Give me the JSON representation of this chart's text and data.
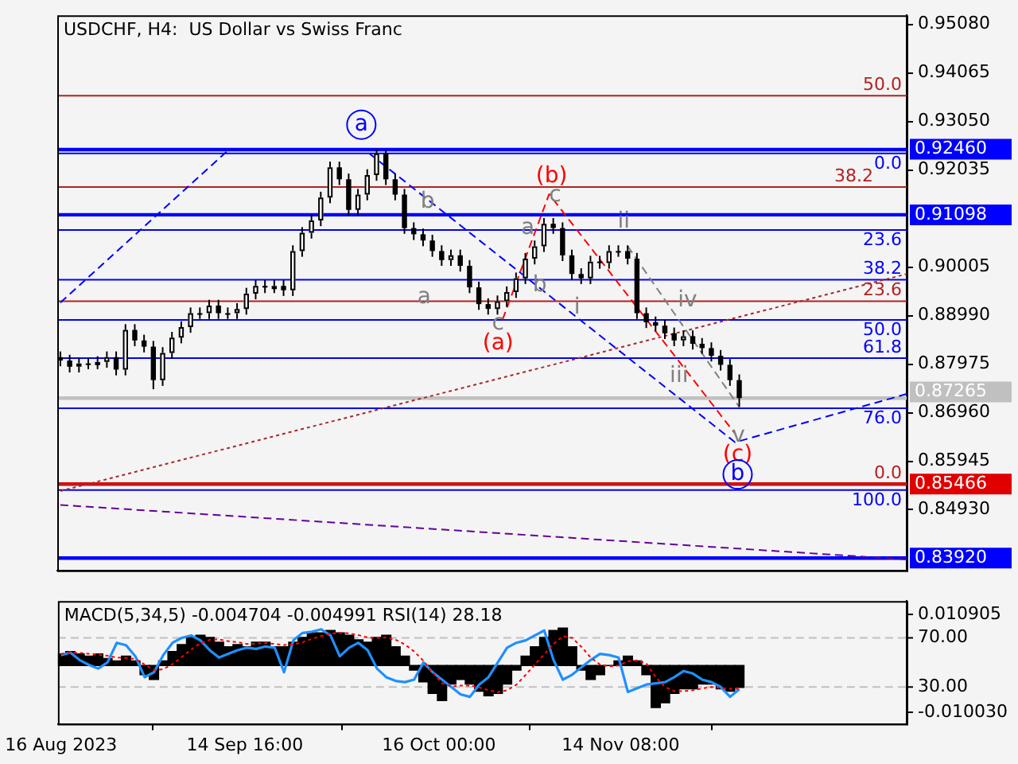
{
  "chart_data": [
    {
      "type": "candlestick",
      "title": "USDCHF, H4:  US Dollar vs Swiss Franc",
      "x": [
        "2023-08-16T00:00",
        "2023-08-17T12:00",
        "2023-08-19T00:00",
        "2023-08-20T12:00",
        "2023-08-22T00:00",
        "2023-08-23T12:00",
        "2023-08-25T00:00",
        "2023-08-26T12:00",
        "2023-08-28T00:00",
        "2023-08-29T12:00",
        "2023-08-31T00:00",
        "2023-09-01T12:00",
        "2023-09-03T00:00",
        "2023-09-04T12:00",
        "2023-09-06T00:00",
        "2023-09-07T12:00",
        "2023-09-09T00:00",
        "2023-09-10T12:00",
        "2023-09-12T00:00",
        "2023-09-13T12:00",
        "2023-09-15T00:00",
        "2023-09-16T12:00",
        "2023-09-18T00:00",
        "2023-09-19T12:00",
        "2023-09-21T00:00",
        "2023-09-22T12:00",
        "2023-09-24T00:00",
        "2023-09-25T12:00",
        "2023-09-27T00:00",
        "2023-09-28T12:00",
        "2023-09-30T00:00",
        "2023-10-01T12:00",
        "2023-10-03T00:00",
        "2023-10-04T12:00",
        "2023-10-06T00:00",
        "2023-10-07T12:00",
        "2023-10-09T00:00",
        "2023-10-10T12:00",
        "2023-10-12T00:00",
        "2023-10-13T12:00",
        "2023-10-15T00:00",
        "2023-10-16T12:00",
        "2023-10-18T00:00",
        "2023-10-19T12:00",
        "2023-10-21T00:00",
        "2023-10-22T12:00",
        "2023-10-24T00:00",
        "2023-10-25T12:00",
        "2023-10-27T00:00",
        "2023-10-28T12:00",
        "2023-10-30T00:00",
        "2023-10-31T12:00",
        "2023-11-02T00:00",
        "2023-11-03T12:00",
        "2023-11-05T00:00",
        "2023-11-06T12:00",
        "2023-11-08T00:00",
        "2023-11-09T12:00",
        "2023-11-11T00:00",
        "2023-11-12T12:00",
        "2023-11-14T00:00",
        "2023-11-15T12:00",
        "2023-11-17T00:00",
        "2023-11-18T12:00",
        "2023-11-20T00:00",
        "2023-11-21T12:00",
        "2023-11-23T00:00",
        "2023-11-24T12:00",
        "2023-11-26T00:00",
        "2023-11-27T12:00",
        "2023-11-29T00:00",
        "2023-11-30T12:00",
        "2023-12-02T00:00",
        "2023-12-03T12:00"
      ],
      "ohlc": [
        [
          0.8812,
          0.8824,
          0.8793,
          0.8805
        ],
        [
          0.8805,
          0.8817,
          0.878,
          0.8792
        ],
        [
          0.8792,
          0.8811,
          0.878,
          0.8799
        ],
        [
          0.8799,
          0.8811,
          0.8787,
          0.8799
        ],
        [
          0.8799,
          0.8814,
          0.8787,
          0.8802
        ],
        [
          0.8802,
          0.8824,
          0.879,
          0.8812
        ],
        [
          0.8812,
          0.8824,
          0.8774,
          0.8786
        ],
        [
          0.8786,
          0.8881,
          0.8774,
          0.8869
        ],
        [
          0.8869,
          0.8881,
          0.8835,
          0.8847
        ],
        [
          0.8847,
          0.8859,
          0.8822,
          0.8834
        ],
        [
          0.8834,
          0.8846,
          0.8745,
          0.8764
        ],
        [
          0.8764,
          0.8833,
          0.8752,
          0.8821
        ],
        [
          0.8821,
          0.8865,
          0.8809,
          0.8853
        ],
        [
          0.8853,
          0.8887,
          0.8841,
          0.8875
        ],
        [
          0.8875,
          0.8916,
          0.8863,
          0.8904
        ],
        [
          0.8904,
          0.8916,
          0.8892,
          0.8904
        ],
        [
          0.8904,
          0.8932,
          0.8892,
          0.892
        ],
        [
          0.892,
          0.8932,
          0.8892,
          0.8904
        ],
        [
          0.8904,
          0.8916,
          0.8892,
          0.8904
        ],
        [
          0.8904,
          0.8925,
          0.8892,
          0.8913
        ],
        [
          0.8913,
          0.8957,
          0.8901,
          0.8945
        ],
        [
          0.8945,
          0.8973,
          0.8933,
          0.8961
        ],
        [
          0.8961,
          0.8973,
          0.8946,
          0.8958
        ],
        [
          0.8958,
          0.8973,
          0.8946,
          0.8961
        ],
        [
          0.8961,
          0.8973,
          0.894,
          0.8952
        ],
        [
          0.8952,
          0.9046,
          0.894,
          0.9034
        ],
        [
          0.9034,
          0.9084,
          0.9022,
          0.9072
        ],
        [
          0.9072,
          0.911,
          0.906,
          0.9098
        ],
        [
          0.9098,
          0.9158,
          0.9086,
          0.9146
        ],
        [
          0.9146,
          0.9221,
          0.9134,
          0.9209
        ],
        [
          0.9209,
          0.9221,
          0.9172,
          0.9184
        ],
        [
          0.9184,
          0.9196,
          0.9108,
          0.912
        ],
        [
          0.912,
          0.9164,
          0.9108,
          0.9152
        ],
        [
          0.9152,
          0.9205,
          0.914,
          0.9193
        ],
        [
          0.9193,
          0.9246,
          0.9181,
          0.9238
        ],
        [
          0.9238,
          0.9246,
          0.9172,
          0.9184
        ],
        [
          0.9184,
          0.9196,
          0.914,
          0.9152
        ],
        [
          0.9152,
          0.9164,
          0.907,
          0.9082
        ],
        [
          0.9082,
          0.9094,
          0.9057,
          0.9069
        ],
        [
          0.9069,
          0.9081,
          0.9044,
          0.9056
        ],
        [
          0.9056,
          0.9068,
          0.9022,
          0.9034
        ],
        [
          0.9034,
          0.9046,
          0.9003,
          0.9015
        ],
        [
          0.9015,
          0.9037,
          0.9003,
          0.9025
        ],
        [
          0.9025,
          0.9037,
          0.8991,
          0.9003
        ],
        [
          0.9003,
          0.9015,
          0.8946,
          0.8958
        ],
        [
          0.8958,
          0.897,
          0.8911,
          0.8923
        ],
        [
          0.8923,
          0.8935,
          0.8901,
          0.8913
        ],
        [
          0.8913,
          0.8941,
          0.8901,
          0.8929
        ],
        [
          0.8929,
          0.896,
          0.8917,
          0.8948
        ],
        [
          0.8948,
          0.8989,
          0.8936,
          0.8977
        ],
        [
          0.8977,
          0.903,
          0.8965,
          0.9018
        ],
        [
          0.9018,
          0.9056,
          0.9006,
          0.9044
        ],
        [
          0.9044,
          0.9103,
          0.9032,
          0.9091
        ],
        [
          0.9091,
          0.9103,
          0.907,
          0.9082
        ],
        [
          0.9082,
          0.9094,
          0.9013,
          0.9025
        ],
        [
          0.9025,
          0.9037,
          0.8974,
          0.8986
        ],
        [
          0.8986,
          0.8998,
          0.8965,
          0.8977
        ],
        [
          0.8977,
          0.9024,
          0.8965,
          0.9012
        ],
        [
          0.9012,
          0.9024,
          0.8997,
          0.9009
        ],
        [
          0.9009,
          0.9046,
          0.8997,
          0.9034
        ],
        [
          0.9034,
          0.9046,
          0.9022,
          0.9034
        ],
        [
          0.9034,
          0.9046,
          0.9006,
          0.9018
        ],
        [
          0.9018,
          0.903,
          0.8892,
          0.8904
        ],
        [
          0.8904,
          0.8916,
          0.8873,
          0.8885
        ],
        [
          0.8885,
          0.8897,
          0.8866,
          0.8878
        ],
        [
          0.8878,
          0.889,
          0.885,
          0.8862
        ],
        [
          0.8862,
          0.8874,
          0.8835,
          0.8847
        ],
        [
          0.8847,
          0.8868,
          0.8835,
          0.8856
        ],
        [
          0.8856,
          0.8868,
          0.8828,
          0.884
        ],
        [
          0.884,
          0.8852,
          0.8819,
          0.8831
        ],
        [
          0.8831,
          0.8843,
          0.8803,
          0.8815
        ],
        [
          0.8815,
          0.8827,
          0.8784,
          0.8796
        ],
        [
          0.8796,
          0.8808,
          0.8752,
          0.8764
        ],
        [
          0.8764,
          0.8776,
          0.8708,
          0.87265
        ]
      ],
      "series": [
        {
          "type": "line",
          "color": "#0000ff",
          "line_style": "dashed",
          "x": [
            "2023-08-16",
            "2023-09-12"
          ],
          "values": [
            0.8926,
            0.9244
          ]
        },
        {
          "type": "line",
          "color": "#0000ff",
          "line_style": "dashed",
          "x": [
            "2023-10-04T20:00",
            "2023-12-02T20:00",
            "2023-12-30T12:00"
          ],
          "values": [
            0.9238,
            0.8634,
            0.8735
          ]
        },
        {
          "type": "line",
          "color": "#ff0000",
          "line_style": "dashed",
          "x": [
            "2023-10-26T08:00",
            "2023-11-02T20:00",
            "2023-12-02T20:00"
          ],
          "values": [
            0.8891,
            0.9153,
            0.8652
          ]
        },
        {
          "type": "line",
          "color": "#808080",
          "line_style": "dashed",
          "x": [
            "2023-11-15T12:00",
            "2023-12-03T12:00"
          ],
          "values": [
            0.9044,
            0.8708
          ]
        },
        {
          "type": "line",
          "color": "#a52a2a",
          "line_style": "dotted",
          "x": [
            "2023-08-16",
            "2023-12-30T12:00"
          ],
          "values": [
            0.8532,
            0.8986
          ]
        },
        {
          "type": "line",
          "color": "#660099",
          "line_style": "dashed",
          "x": [
            "2023-08-16",
            "2023-12-30T12:00"
          ],
          "values": [
            0.8503,
            0.8389
          ]
        }
      ],
      "xlim": [
        "2023-08-15T12:00",
        "2023-12-30T12:00"
      ],
      "ylim": [
        0.8366,
        0.9527
      ],
      "yticks": [
        {
          "value": 0.9508,
          "label": "0.95080"
        },
        {
          "value": 0.94065,
          "label": "0.94065"
        },
        {
          "value": 0.9305,
          "label": "0.93050"
        },
        {
          "value": 0.92035,
          "label": "0.92035"
        },
        {
          "value": 0.90005,
          "label": "0.90005"
        },
        {
          "value": 0.8899,
          "label": "0.88990"
        },
        {
          "value": 0.87975,
          "label": "0.87975"
        },
        {
          "value": 0.8696,
          "label": "0.86960"
        },
        {
          "value": 0.85945,
          "label": "0.85945"
        },
        {
          "value": 0.8493,
          "label": "0.84930"
        }
      ],
      "tick_labels": "y",
      "ref_lines": [
        {
          "axis": "y",
          "value": 0.9359,
          "color": "#b22222"
        },
        {
          "axis": "y",
          "value": 0.9246,
          "label": "0.92460",
          "color": "#0000ff"
        },
        {
          "axis": "y",
          "value": 0.9238,
          "color": "#0000ff"
        },
        {
          "axis": "y",
          "value": 0.9168,
          "color": "#b22222"
        },
        {
          "axis": "y",
          "value": 0.91098,
          "label": "0.91098",
          "color": "#0000ff"
        },
        {
          "axis": "y",
          "value": 0.9078,
          "color": "#0000ff"
        },
        {
          "axis": "y",
          "value": 0.8974,
          "color": "#0000ff"
        },
        {
          "axis": "y",
          "value": 0.8929,
          "color": "#b22222"
        },
        {
          "axis": "y",
          "value": 0.889,
          "color": "#0000ff"
        },
        {
          "axis": "y",
          "value": 0.881,
          "color": "#0000ff"
        },
        {
          "axis": "y",
          "value": 0.87265,
          "label": "0.87265",
          "color": "#c0c0c0"
        },
        {
          "axis": "y",
          "value": 0.8705,
          "color": "#0000ff"
        },
        {
          "axis": "y",
          "value": 0.85466,
          "label": "0.85466",
          "color": "#e00000"
        },
        {
          "axis": "y",
          "value": 0.8547,
          "color": "#b22222"
        },
        {
          "axis": "y",
          "value": 0.8534,
          "color": "#0000ff"
        },
        {
          "axis": "y",
          "value": 0.8392,
          "label": "0.83920",
          "color": "#0000ff"
        }
      ],
      "annotations": [
        "a",
        "(b)",
        "c",
        "b",
        "a",
        "a",
        "b",
        "c",
        "(a)",
        "i",
        "ii",
        "iii",
        "iv",
        "v",
        "(c)",
        "b",
        {
          "text": "50.0",
          "y": 0.9359
        },
        {
          "text": "0.0",
          "y": 0.9238
        },
        {
          "text": "38.2",
          "y": 0.9168
        },
        {
          "text": "23.6",
          "y": 0.9078
        },
        {
          "text": "38.2",
          "y": 0.8974
        },
        {
          "text": "23.6",
          "y": 0.8929
        },
        {
          "text": "50.0",
          "y": 0.889
        },
        {
          "text": "61.8",
          "y": 0.881
        },
        {
          "text": "76.0",
          "y": 0.8705
        },
        {
          "text": "0.0",
          "y": 0.8547
        },
        {
          "text": "100.0",
          "y": 0.8534
        }
      ]
    },
    {
      "type": "bar",
      "title": "MACD(5,34,5) -0.004704 -0.004991 RSI(14) 28.18",
      "x": [
        "2023-08-16T00:00",
        "2023-08-17T12:00",
        "2023-08-19T00:00",
        "2023-08-20T12:00",
        "2023-08-22T00:00",
        "2023-08-23T12:00",
        "2023-08-25T00:00",
        "2023-08-26T12:00",
        "2023-08-28T00:00",
        "2023-08-29T12:00",
        "2023-08-31T00:00",
        "2023-09-01T12:00",
        "2023-09-03T00:00",
        "2023-09-04T12:00",
        "2023-09-06T00:00",
        "2023-09-07T12:00",
        "2023-09-09T00:00",
        "2023-09-10T12:00",
        "2023-09-12T00:00",
        "2023-09-13T12:00",
        "2023-09-15T00:00",
        "2023-09-16T12:00",
        "2023-09-18T00:00",
        "2023-09-19T12:00",
        "2023-09-21T00:00",
        "2023-09-22T12:00",
        "2023-09-24T00:00",
        "2023-09-25T12:00",
        "2023-09-27T00:00",
        "2023-09-28T12:00",
        "2023-09-30T00:00",
        "2023-10-01T12:00",
        "2023-10-03T00:00",
        "2023-10-04T12:00",
        "2023-10-06T00:00",
        "2023-10-07T12:00",
        "2023-10-09T00:00",
        "2023-10-10T12:00",
        "2023-10-12T00:00",
        "2023-10-13T12:00",
        "2023-10-15T00:00",
        "2023-10-16T12:00",
        "2023-10-18T00:00",
        "2023-10-19T12:00",
        "2023-10-21T00:00",
        "2023-10-22T12:00",
        "2023-10-24T00:00",
        "2023-10-25T12:00",
        "2023-10-27T00:00",
        "2023-10-28T12:00",
        "2023-10-30T00:00",
        "2023-10-31T12:00",
        "2023-11-02T00:00",
        "2023-11-03T12:00",
        "2023-11-05T00:00",
        "2023-11-06T12:00",
        "2023-11-08T00:00",
        "2023-11-09T12:00",
        "2023-11-11T00:00",
        "2023-11-12T12:00",
        "2023-11-14T00:00",
        "2023-11-15T12:00",
        "2023-11-17T00:00",
        "2023-11-18T12:00",
        "2023-11-20T00:00",
        "2023-11-21T12:00",
        "2023-11-23T00:00",
        "2023-11-24T12:00",
        "2023-11-26T00:00",
        "2023-11-27T12:00",
        "2023-11-29T00:00",
        "2023-11-30T12:00",
        "2023-12-02T00:00",
        "2023-12-03T12:00"
      ],
      "series": [
        {
          "type": "bar",
          "color": "#000000",
          "values": [
            0.0025,
            0.003,
            0.0025,
            0.002,
            0.0025,
            0.0015,
            0.001,
            0.002,
            0.001,
            -0.002,
            -0.003,
            0.001,
            0.003,
            0.0045,
            0.006,
            0.0065,
            0.006,
            0.005,
            0.004,
            0.0045,
            0.004,
            0.005,
            0.005,
            0.004,
            0.004,
            0.005,
            0.006,
            0.007,
            0.007,
            0.0075,
            0.007,
            0.0065,
            0.0055,
            0.005,
            0.006,
            0.0065,
            0.004,
            0.002,
            -0.001,
            -0.0035,
            -0.006,
            -0.0075,
            -0.004,
            -0.003,
            -0.004,
            -0.0055,
            -0.0065,
            -0.006,
            -0.004,
            -0.001,
            0.002,
            0.004,
            0.006,
            0.0075,
            0.008,
            0.004,
            -0.001,
            -0.003,
            -0.002,
            0.0,
            0.001,
            0.002,
            0.001,
            -0.002,
            -0.009,
            -0.008,
            -0.006,
            -0.005,
            -0.005,
            -0.004,
            -0.004,
            -0.005,
            -0.0055,
            -0.004704
          ]
        },
        {
          "type": "line",
          "color": "#ff0000",
          "line_style": "dotted",
          "values": [
            0.0025,
            0.0027,
            0.0027,
            0.0025,
            0.0023,
            0.0021,
            0.0017,
            0.0016,
            0.0014,
            0.0002,
            -0.001,
            -0.0008,
            0.0003,
            0.0018,
            0.0034,
            0.0048,
            0.0055,
            0.0056,
            0.0052,
            0.005,
            0.0046,
            0.0047,
            0.0048,
            0.0046,
            0.0044,
            0.0045,
            0.005,
            0.0057,
            0.0063,
            0.0068,
            0.007,
            0.0069,
            0.0065,
            0.006,
            0.0059,
            0.006,
            0.0055,
            0.0045,
            0.003,
            0.001,
            -0.0015,
            -0.0038,
            -0.0045,
            -0.0043,
            -0.0043,
            -0.0047,
            -0.0053,
            -0.0057,
            -0.0053,
            -0.0041,
            -0.002,
            0.0002,
            0.0024,
            0.0046,
            0.0063,
            0.0059,
            0.004,
            0.0017,
            0.0002,
            -0.0002,
            0.0,
            0.0009,
            0.0011,
            0.0004,
            -0.0025,
            -0.0046,
            -0.0055,
            -0.0055,
            -0.0053,
            -0.0049,
            -0.0046,
            -0.0048,
            -0.005,
            -0.004991
          ]
        },
        {
          "type": "line",
          "axis": "y2",
          "color": "#1e90ff",
          "values": [
            56,
            58,
            52,
            48,
            45,
            50,
            66,
            64,
            55,
            38,
            42,
            56,
            66,
            70,
            72,
            68,
            60,
            54,
            57,
            60,
            62,
            61,
            63,
            62,
            42,
            68,
            74,
            75,
            77,
            72,
            55,
            62,
            66,
            60,
            45,
            38,
            35,
            34,
            36,
            50,
            42,
            36,
            30,
            24,
            22,
            32,
            38,
            50,
            62,
            66,
            68,
            72,
            76,
            52,
            36,
            40,
            46,
            52,
            57,
            56,
            54,
            26,
            29,
            32,
            33,
            34,
            38,
            43,
            41,
            36,
            34,
            30,
            22,
            28.18
          ]
        }
      ],
      "xlim": [
        "2023-08-15T12:00",
        "2023-12-30T12:00"
      ],
      "xticks": [
        {
          "value": "2023-08-16",
          "label": "16 Aug 2023"
        },
        {
          "value": "2023-09-14T16:00",
          "label": "14 Sep 16:00"
        },
        {
          "value": "2023-10-16",
          "label": "16 Oct 00:00"
        },
        {
          "value": "2023-11-14T08:00",
          "label": "14 Nov 08:00"
        }
      ],
      "ylim": [
        -0.0125,
        0.0138
      ],
      "yticks": [
        {
          "value": 0.010905,
          "label": "0.010905"
        },
        {
          "value": -0.01003,
          "label": "-0.010030"
        }
      ],
      "y2lim": [
        0,
        100
      ],
      "y2ticks": [
        {
          "value": 70,
          "label": "70.00"
        },
        {
          "value": 30,
          "label": "30.00"
        }
      ],
      "ref_lines": [
        {
          "axis": "y2",
          "value": 70,
          "color": "#c0c0c0",
          "line_style": "dashed"
        },
        {
          "axis": "y2",
          "value": 30,
          "color": "#c0c0c0",
          "line_style": "dashed"
        }
      ]
    }
  ]
}
